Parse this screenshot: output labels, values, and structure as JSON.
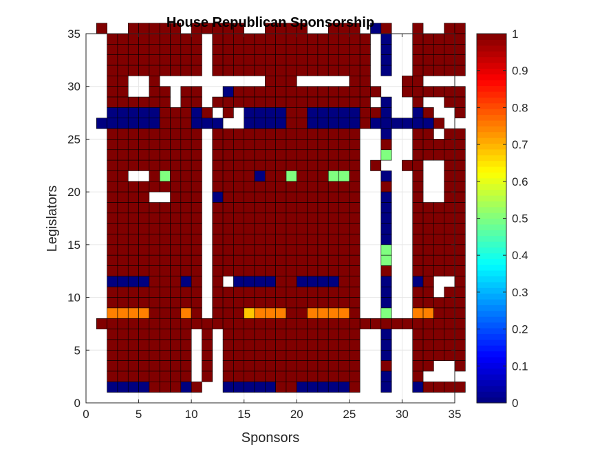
{
  "chart_data": {
    "type": "heatmap",
    "title": "House Republican Sponsorship",
    "xlabel": "Sponsors",
    "ylabel": "Legislators",
    "xlim": [
      0,
      35
    ],
    "ylim": [
      0,
      35
    ],
    "xticks": [
      "0",
      "5",
      "10",
      "15",
      "20",
      "25",
      "30",
      "35"
    ],
    "yticks": [
      "0",
      "5",
      "10",
      "15",
      "20",
      "25",
      "30",
      "35"
    ],
    "grid": true,
    "colormap": "jet",
    "colorbar": {
      "range": [
        0,
        1
      ],
      "ticks": [
        "0",
        "0.1",
        "0.2",
        "0.3",
        "0.4",
        "0.5",
        "0.6",
        "0.7",
        "0.8",
        "0.9",
        "1"
      ]
    },
    "cell_origin": [
      1,
      1
    ],
    "value_legend": {
      "R": 1,
      "B": 0,
      "O": 0.75,
      "Y": 0.68,
      "G": 0.5,
      ".": null
    },
    "rows_top_to_bottom": [
      "R..RRRRR.RRRRR..RRRR..RRR.BR..R..RR",
      ".RRRRRRRRR.RRRRRRRRRRRRRRR.B..RRRRR",
      ".RRRRRRRRR.RRRRRRRRRRRRRRR.B..RRRRR",
      ".RRRRRRRRR.RRRRRRRRRRRRRRR.B..RRRRR",
      ".RRRRRRRRR.RRRRRRRRRRRRRRR.B..RRRRR",
      ".RR..R..........RRR.....RR...RR....",
      ".RR..RR.RR..BRRRRRRRRRRRRRR..RRRRRR",
      ".RRRRRR.RR.RRRRRRRRRRRRRRR.B..R..RR",
      ".BBBBBRRRBR.R.BBBBRRBBBBBRRB..BR..R",
      "BBBBBBRRRBBB..BBBBRRBBBBBRBBBBBBR..",
      ".RRRRRRRRR.RRRRRRRRRRRRRR..B..RR.RR",
      ".RRRRRRRRR.RRRRRRRRRRRRRR..R..RRRRR",
      ".RRRRRRRRR.RRRRRRRRRRRRRR..G..RRRRR",
      ".RRRRRRRRR.RRRRRRRRRRRRRR.R..RR..RR",
      ".RR..RGRRR.RRRRBRRGRRRGGR..B..R..RR",
      ".RRRRRRRRR.RRRRRRRRRRRRRR..R..R..RR",
      ".RRRR..RRR.BRRRRRRRRRRRRR..B..R..RR",
      ".RRRRRRRRR.RRRRRRRRRRRRRR..B..RRRRR",
      ".RRRRRRRRR.RRRRRRRRRRRRRR..B..RRRRR",
      ".RRRRRRRRR.RRRRRRRRRRRRRR..B..RRRRR",
      ".RRRRRRRRR.RRRRRRRRRRRRRR..B..RRRRR",
      ".RRRRRRRRR.RRRRRRRRRRRRRR..G..RRRRR",
      ".RRRRRRRRR.RRRRRRRRRRRRRR..G..RRRRR",
      ".RRRRRRRRR.RRRRRRRRRRRRRR..R..RRRRR",
      ".BBBBRRRBR.R.BBBBRRBBBBRR..B..BR..R",
      ".RRRRRRRRR.RRRRRRRRRRRRRR..B..RR.RR",
      ".RRRRRRRRR.RRRRRRRRRRRRRR..B..RRRRR",
      ".OOOORRROR.RRRYOOORROOOOR..G..OORRR",
      "RRRRRRRRRRRRRRRRRRRRRRRRRRRRRRRRRRR",
      ".RRRRRRRR.R.RRRRRRRRRRRRR..B..RRRRR",
      ".RRRRRRRR.R.RRRRRRRRRRRRR..B..RRRRR",
      ".RRRRRRRR.R.RRRRRRRRRRRRR..B..RRRRR",
      ".RRRRRRRR.R.RRRRRRRRRRRRR..R..RR..R",
      ".RRRRRRRR.R.RRRRRRRRRRRRR..B..R....",
      ".BBBBRRRBR..BBBBBRRBBBBBR..B..BRRRR"
    ]
  }
}
